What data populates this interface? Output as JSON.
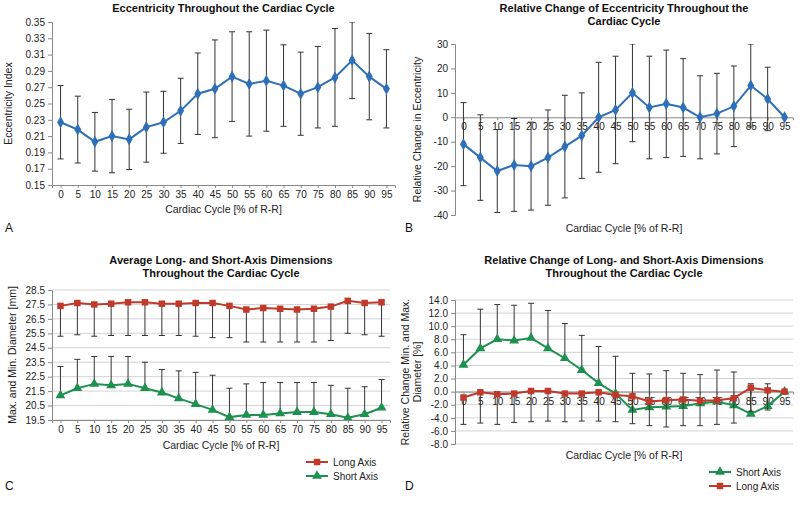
{
  "chart_data": [
    {
      "type": "line",
      "panel": "A",
      "title": "Eccentricity Throughout the Cardiac Cycle",
      "x_label": "Cardiac Cycle [% of R-R]",
      "y_label": "Eccentricity Index",
      "categories": [
        0,
        5,
        10,
        15,
        20,
        25,
        30,
        35,
        40,
        45,
        50,
        55,
        60,
        65,
        70,
        75,
        80,
        85,
        90,
        95
      ],
      "values": [
        0.227,
        0.218,
        0.203,
        0.21,
        0.206,
        0.221,
        0.227,
        0.241,
        0.262,
        0.268,
        0.283,
        0.274,
        0.278,
        0.272,
        0.262,
        0.27,
        0.282,
        0.303,
        0.283,
        0.268
      ],
      "errors": [
        0.045,
        0.041,
        0.036,
        0.045,
        0.037,
        0.043,
        0.038,
        0.04,
        0.05,
        0.06,
        0.055,
        0.064,
        0.062,
        0.05,
        0.051,
        0.05,
        0.06,
        0.047,
        0.053,
        0.048
      ],
      "color": "#2e6fb7",
      "marker": "diamond",
      "ylim": [
        0.15,
        0.35
      ],
      "yticks": [
        0.15,
        0.17,
        0.19,
        0.21,
        0.23,
        0.25,
        0.27,
        0.29,
        0.31,
        0.33,
        0.35
      ],
      "grid": false
    },
    {
      "type": "line",
      "panel": "B",
      "title": [
        "Relative Change of Eccentricity Throughout the",
        "Cardiac Cycle"
      ],
      "x_label": "Cardiac Cycle [% of R-R]",
      "y_label": "Relative Change in Eccentricity",
      "categories": [
        0,
        5,
        10,
        15,
        20,
        25,
        30,
        35,
        40,
        45,
        50,
        55,
        60,
        65,
        70,
        75,
        80,
        85,
        90,
        95
      ],
      "values": [
        -11,
        -16.5,
        -22,
        -19.5,
        -20,
        -16.5,
        -12,
        -7.5,
        0,
        3,
        10,
        4,
        5.5,
        4,
        0,
        1.5,
        4.5,
        13,
        7.5,
        0
      ],
      "errors": [
        17,
        17.5,
        17,
        19,
        18,
        19.5,
        21,
        17.5,
        22.5,
        22,
        20,
        21,
        22,
        20,
        17,
        16.5,
        16.5,
        17,
        13,
        0
      ],
      "color": "#2e6fb7",
      "marker": "diamond",
      "ylim": [
        -40,
        30
      ],
      "yticks": [
        -40,
        -30,
        -20,
        -10,
        0,
        10,
        20,
        30
      ],
      "grid": false
    },
    {
      "type": "line",
      "panel": "C",
      "title": [
        "Average Long- and Short-Axis Dimensions",
        "Throughout the Cardiac Cycle"
      ],
      "x_label": "Cardiac Cycle [% of R-R]",
      "y_label": "Max. and Min. Diameter [mm]",
      "categories": [
        0,
        5,
        10,
        15,
        20,
        25,
        30,
        35,
        40,
        45,
        50,
        55,
        60,
        65,
        70,
        75,
        80,
        85,
        90,
        95
      ],
      "series": [
        {
          "name": "Long Axis",
          "color": "#c0392b",
          "marker": "square",
          "values": [
            27.4,
            27.6,
            27.5,
            27.55,
            27.65,
            27.65,
            27.55,
            27.55,
            27.6,
            27.6,
            27.4,
            27.15,
            27.25,
            27.2,
            27.15,
            27.2,
            27.35,
            27.75,
            27.6,
            27.65
          ],
          "error_minus": [
            2.1,
            2.2,
            2.2,
            2.2,
            2.3,
            2.3,
            2.2,
            2.2,
            2.3,
            2.4,
            2.2,
            2.25,
            2.35,
            2.3,
            2.25,
            2.3,
            2.35,
            2.25,
            2.2,
            2.35
          ]
        },
        {
          "name": "Short Axis",
          "color": "#1e9150",
          "marker": "triangle",
          "values": [
            21.2,
            21.7,
            22.0,
            21.9,
            22.0,
            21.7,
            21.4,
            21.0,
            20.6,
            20.2,
            19.7,
            19.85,
            19.85,
            19.95,
            20.05,
            20.05,
            19.9,
            19.65,
            19.9,
            20.35
          ],
          "error_plus": [
            2.0,
            2.0,
            1.9,
            2.0,
            1.9,
            1.8,
            1.6,
            1.9,
            2.2,
            2.4,
            2.0,
            2.15,
            2.25,
            2.15,
            2.05,
            2.05,
            2.0,
            2.05,
            1.9,
            1.95
          ]
        }
      ],
      "ylim": [
        19.5,
        28.5
      ],
      "yticks": [
        19.5,
        20.5,
        21.5,
        22.5,
        23.5,
        24.5,
        25.5,
        26.5,
        27.5,
        28.5
      ],
      "grid": true,
      "legend": "bottom-right"
    },
    {
      "type": "line",
      "panel": "D",
      "title": [
        "Relative Change of Long- and Short-Axis Dimensions",
        "Throughout the Cardiac Cycle"
      ],
      "x_label": "Cardiac Cycle [% of R-R]",
      "y_label": [
        "Relative Change Min. and Max.",
        "Diameter [%]"
      ],
      "categories": [
        0,
        5,
        10,
        15,
        20,
        25,
        30,
        35,
        40,
        45,
        50,
        55,
        60,
        65,
        70,
        75,
        80,
        85,
        90,
        95
      ],
      "series": [
        {
          "name": "Short Axis",
          "color": "#1e9150",
          "marker": "triangle",
          "values": [
            4.1,
            6.6,
            8.0,
            7.8,
            8.2,
            6.6,
            5.1,
            3.3,
            1.3,
            -0.3,
            -2.8,
            -2.4,
            -2.3,
            -2.2,
            -1.8,
            -1.5,
            -2.1,
            -3.4,
            -2.2,
            0
          ],
          "error_plus": [
            4.6,
            6.0,
            5.3,
            5.4,
            5.3,
            5.8,
            5.3,
            5.3,
            5.6,
            5.7,
            5.6,
            5.1,
            5.5,
            5.0,
            4.4,
            4.8,
            5.1,
            4.6,
            3.4,
            0
          ]
        },
        {
          "name": "Long Axis",
          "color": "#c0392b",
          "marker": "square",
          "values": [
            -0.9,
            -0.1,
            -0.4,
            -0.3,
            0.1,
            0.1,
            -0.3,
            -0.3,
            -0.1,
            -0.5,
            -0.7,
            -1.5,
            -1.3,
            -1.2,
            -1.4,
            -1.3,
            -1.0,
            0.6,
            0.2,
            0
          ],
          "error_minus": [
            4.1,
            4.7,
            4.6,
            4.4,
            4.7,
            4.6,
            4.3,
            4.2,
            4.4,
            4.1,
            4.2,
            3.7,
            4.1,
            4.0,
            3.8,
            3.7,
            3.8,
            3.6,
            3.0,
            0
          ]
        }
      ],
      "ylim": [
        -8,
        14
      ],
      "yticks": [
        {
          "value": -8,
          "label": "-8.0"
        },
        {
          "value": -6,
          "label": "-6.0"
        },
        {
          "value": -4,
          "label": "-4.0"
        },
        {
          "value": -2,
          "label": "-2.0"
        },
        {
          "value": 0,
          "label": "0.0"
        },
        {
          "value": 2,
          "label": "2.0"
        },
        {
          "value": 4,
          "label": "4.0"
        },
        {
          "value": 6,
          "label": "6.0"
        },
        {
          "value": 8,
          "label": "8.0"
        },
        {
          "value": 10,
          "label": "10.0"
        },
        {
          "value": 12,
          "label": "12.0"
        },
        {
          "value": 14,
          "label": "14.0"
        }
      ],
      "grid": true,
      "legend": "bottom-right"
    }
  ]
}
